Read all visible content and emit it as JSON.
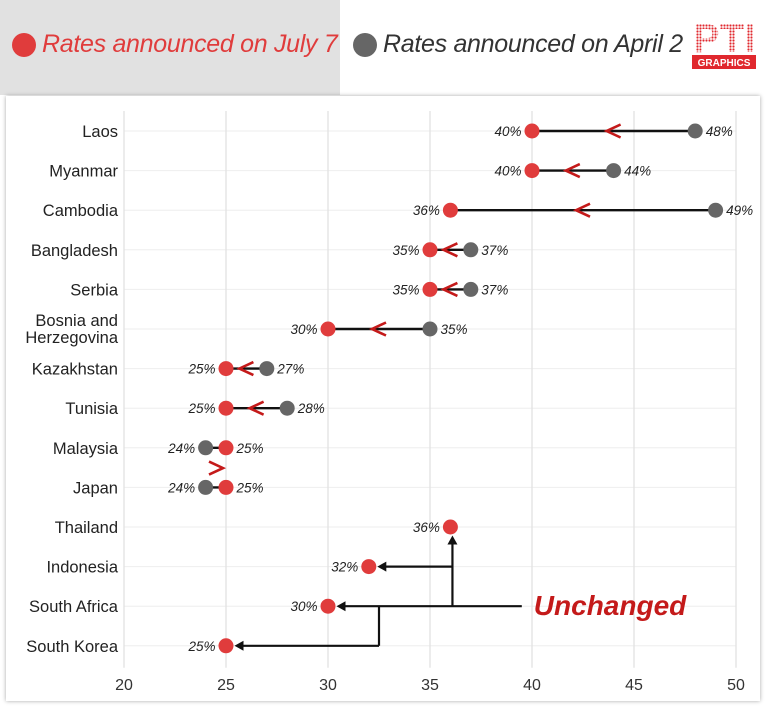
{
  "legend": {
    "july": {
      "label": "Rates announced on July 7",
      "color": "#e03c3c"
    },
    "april": {
      "label": "Rates announced on April 2",
      "color": "#666666"
    }
  },
  "logo": {
    "top": "PTI",
    "bottom": "GRAPHICS",
    "color": "#e0282e"
  },
  "annotation": {
    "unchanged": "Unchanged",
    "color": "#c41a1a"
  },
  "chart_data": {
    "type": "dumbbell",
    "xlim": [
      20,
      50
    ],
    "xticks": [
      20,
      25,
      30,
      35,
      40,
      45,
      50
    ],
    "grid": true,
    "legend_position": "top",
    "series": [
      {
        "name": "Rates announced on July 7",
        "color": "#e03c3c"
      },
      {
        "name": "Rates announced on April 2",
        "color": "#666666"
      }
    ],
    "categories": [
      {
        "name": "Laos",
        "lines": [
          "Laos"
        ],
        "july": 40,
        "july_label": "40%",
        "april": 48,
        "april_label": "48%"
      },
      {
        "name": "Myanmar",
        "lines": [
          "Myanmar"
        ],
        "july": 40,
        "july_label": "40%",
        "april": 44,
        "april_label": "44%"
      },
      {
        "name": "Cambodia",
        "lines": [
          "Cambodia"
        ],
        "july": 36,
        "july_label": "36%",
        "april": 49,
        "april_label": "49%"
      },
      {
        "name": "Bangladesh",
        "lines": [
          "Bangladesh"
        ],
        "july": 35,
        "july_label": "35%",
        "april": 37,
        "april_label": "37%"
      },
      {
        "name": "Serbia",
        "lines": [
          "Serbia"
        ],
        "july": 35,
        "july_label": "35%",
        "april": 37,
        "april_label": "37%"
      },
      {
        "name": "Bosnia and Herzegovina",
        "lines": [
          "Bosnia and",
          "Herzegovina"
        ],
        "july": 30,
        "july_label": "30%",
        "april": 35,
        "april_label": "35%"
      },
      {
        "name": "Kazakhstan",
        "lines": [
          "Kazakhstan"
        ],
        "july": 25,
        "july_label": "25%",
        "april": 27,
        "april_label": "27%"
      },
      {
        "name": "Tunisia",
        "lines": [
          "Tunisia"
        ],
        "july": 25,
        "july_label": "25%",
        "april": 28,
        "april_label": "28%"
      },
      {
        "name": "Malaysia",
        "lines": [
          "Malaysia"
        ],
        "july": 25,
        "july_label": "25%",
        "april": 24,
        "april_label": "24%"
      },
      {
        "name": "Japan",
        "lines": [
          "Japan"
        ],
        "july": 25,
        "july_label": "25%",
        "april": 24,
        "april_label": "24%"
      },
      {
        "name": "Thailand",
        "lines": [
          "Thailand"
        ],
        "july": 36,
        "july_label": "36%",
        "april": null,
        "april_label": null
      },
      {
        "name": "Indonesia",
        "lines": [
          "Indonesia"
        ],
        "july": 32,
        "july_label": "32%",
        "april": null,
        "april_label": null
      },
      {
        "name": "South Africa",
        "lines": [
          "South Africa"
        ],
        "july": 30,
        "july_label": "30%",
        "april": null,
        "april_label": null
      },
      {
        "name": "South Korea",
        "lines": [
          "South Korea"
        ],
        "july": 25,
        "july_label": "25%",
        "april": null,
        "april_label": null
      }
    ]
  }
}
